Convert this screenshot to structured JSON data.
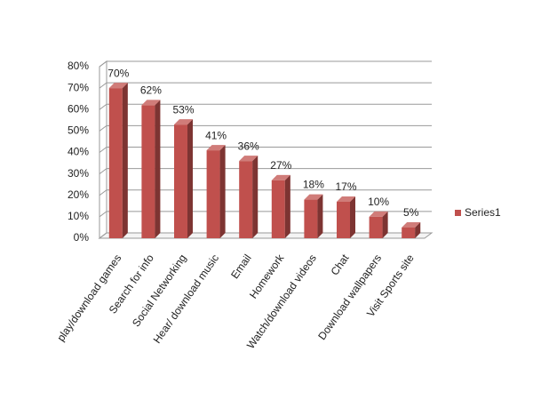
{
  "chart_data": {
    "type": "bar3d",
    "categories": [
      "play/download games",
      "Search for info",
      "Social Networking",
      "Hear/ download music",
      "Email",
      "Homework",
      "Watch/download videos",
      "Chat",
      "Download wallpapers",
      "Visit Sports site"
    ],
    "series": [
      {
        "name": "Series1",
        "color": "#c0504d",
        "values": [
          70,
          62,
          53,
          41,
          36,
          27,
          18,
          17,
          10,
          5
        ],
        "value_labels": [
          "70%",
          "62%",
          "53%",
          "41%",
          "36%",
          "27%",
          "18%",
          "17%",
          "10%",
          "5%"
        ]
      }
    ],
    "ylim": [
      0,
      80
    ],
    "yticks": [
      {
        "value": 0,
        "label": "0%"
      },
      {
        "value": 10,
        "label": "10%"
      },
      {
        "value": 20,
        "label": "20%"
      },
      {
        "value": 30,
        "label": "30%"
      },
      {
        "value": 40,
        "label": "40%"
      },
      {
        "value": 50,
        "label": "50%"
      },
      {
        "value": 60,
        "label": "60%"
      },
      {
        "value": 70,
        "label": "70%"
      },
      {
        "value": 80,
        "label": "80%"
      }
    ],
    "grid": true,
    "legend": "right"
  }
}
